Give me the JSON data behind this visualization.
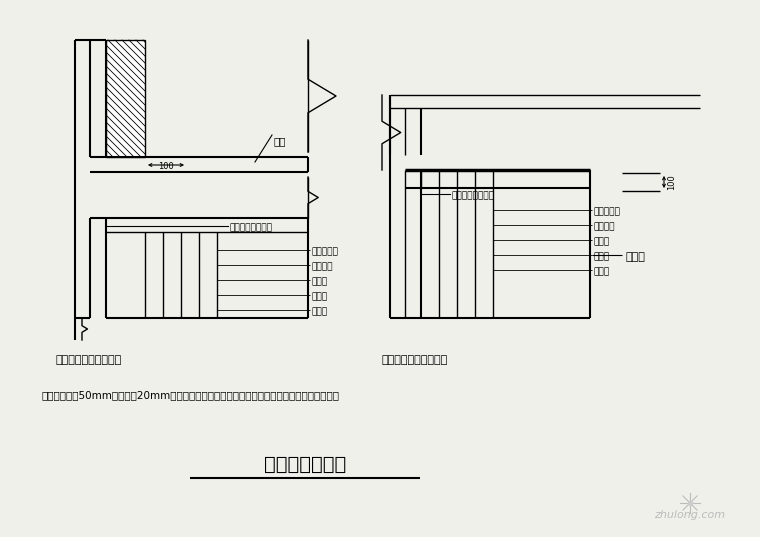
{
  "bg_color": "#f0f0eb",
  "line_color": "#000000",
  "title": "外墙保温节点图",
  "subtitle_left": "外墙内保温板施工端点",
  "subtitle_right": "外墙内保温板施工结点",
  "note_text": "保温板：板厚50mm，空气层20mm，缝隙用胶黏剂填无收缩材料，板临末顶薄薄涂刷网格布，以",
  "left_labels": [
    "无收缩胶胶结材料",
    "外墙装修层",
    "结构墙体",
    "空气层",
    "保温板",
    "网格布"
  ],
  "right_labels": [
    "无收缩胶胶结材料",
    "外墙装修层",
    "结构墙体",
    "空气层",
    "保温板",
    "网格布"
  ],
  "dim_100": "100",
  "label_ledge": "楼板",
  "label_inner_wall": "内层墙",
  "watermark": "zhulong.com"
}
